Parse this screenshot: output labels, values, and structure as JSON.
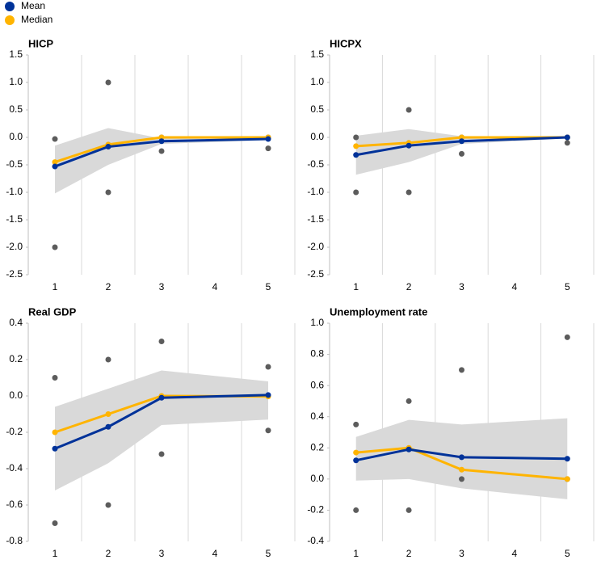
{
  "legend": {
    "entries": [
      {
        "name": "Mean",
        "color": "#003299"
      },
      {
        "name": "Median",
        "color": "#ffb400"
      }
    ]
  },
  "chart_data": [
    {
      "type": "line",
      "title": "HICP",
      "x": [
        1,
        2,
        3,
        5
      ],
      "xlim": [
        0.5,
        5.5
      ],
      "xticks": [
        1,
        2,
        3,
        4,
        5
      ],
      "ylim": [
        -2.5,
        1.5
      ],
      "yticks": [
        -2.5,
        {
          "value": -2,
          "label": "-2.0"
        },
        -1.5,
        {
          "value": -1,
          "label": "-1.0"
        },
        -0.5,
        {
          "value": 0,
          "label": "0.0"
        },
        0.5,
        {
          "value": 1,
          "label": "1.0"
        },
        1.5
      ],
      "series": [
        {
          "values": [
            -0.53,
            -0.17,
            -0.07,
            -0.03
          ]
        },
        {
          "values": [
            -0.45,
            -0.13,
            0,
            0
          ]
        }
      ],
      "band": {
        "color": "#d9d9d9",
        "lower": [
          -1.02,
          -0.5,
          -0.12,
          -0.05
        ],
        "upper": [
          -0.15,
          0.17,
          -0.02,
          0.01
        ]
      },
      "points": {
        "color": "#5c5c5c",
        "max": [
          -0.03,
          1,
          0,
          0
        ],
        "min": [
          -2,
          -1,
          -0.25,
          -0.2
        ]
      }
    },
    {
      "type": "line",
      "title": "HICPX",
      "x": [
        1,
        2,
        3,
        5
      ],
      "xlim": [
        0.5,
        5.5
      ],
      "xticks": [
        1,
        2,
        3,
        4,
        5
      ],
      "ylim": [
        -2.5,
        1.5
      ],
      "yticks": [
        -2.5,
        {
          "value": -2,
          "label": "-2.0"
        },
        -1.5,
        {
          "value": -1,
          "label": "-1.0"
        },
        -0.5,
        {
          "value": 0,
          "label": "0.0"
        },
        0.5,
        {
          "value": 1,
          "label": "1.0"
        },
        1.5
      ],
      "series": [
        {
          "values": [
            -0.32,
            -0.15,
            -0.07,
            0
          ]
        },
        {
          "values": [
            -0.16,
            -0.1,
            0,
            0
          ]
        }
      ],
      "band": {
        "color": "#d9d9d9",
        "lower": [
          -0.68,
          -0.45,
          -0.12,
          -0.02
        ],
        "upper": [
          0.03,
          0.15,
          0.02,
          0.02
        ]
      },
      "points": {
        "color": "#5c5c5c",
        "max": [
          0,
          0.5,
          0,
          0
        ],
        "min": [
          -1,
          -1,
          -0.3,
          -0.1
        ]
      }
    },
    {
      "type": "line",
      "title": "Real GDP",
      "x": [
        1,
        2,
        3,
        5
      ],
      "xlim": [
        0.5,
        5.5
      ],
      "xticks": [
        1,
        2,
        3,
        4,
        5
      ],
      "ylim": [
        -0.8,
        0.4
      ],
      "yticks": [
        -0.8,
        -0.6,
        -0.4,
        -0.2,
        {
          "value": 0,
          "label": "0.0"
        },
        0.2,
        0.4
      ],
      "series": [
        {
          "values": [
            -0.29,
            -0.17,
            -0.01,
            0.005
          ]
        },
        {
          "values": [
            -0.2,
            -0.1,
            0,
            -0.003
          ]
        }
      ],
      "band": {
        "color": "#d9d9d9",
        "lower": [
          -0.52,
          -0.37,
          -0.16,
          -0.13
        ],
        "upper": [
          -0.06,
          0.04,
          0.14,
          0.08
        ]
      },
      "points": {
        "color": "#5c5c5c",
        "max": [
          0.1,
          0.2,
          0.3,
          0.16
        ],
        "min": [
          -0.7,
          -0.6,
          -0.32,
          -0.19
        ]
      }
    },
    {
      "type": "line",
      "title": "Unemployment rate",
      "x": [
        1,
        2,
        3,
        5
      ],
      "xlim": [
        0.5,
        5.5
      ],
      "xticks": [
        1,
        2,
        3,
        4,
        5
      ],
      "ylim": [
        -0.4,
        1
      ],
      "yticks": [
        -0.4,
        -0.2,
        {
          "value": 0,
          "label": "0.0"
        },
        0.2,
        0.4,
        0.6,
        0.8,
        {
          "value": 1,
          "label": "1.0"
        }
      ],
      "series": [
        {
          "values": [
            0.12,
            0.19,
            0.14,
            0.13
          ]
        },
        {
          "values": [
            0.17,
            0.2,
            0.06,
            0
          ]
        }
      ],
      "band": {
        "color": "#d9d9d9",
        "lower": [
          -0.01,
          0,
          -0.06,
          -0.13
        ],
        "upper": [
          0.27,
          0.38,
          0.35,
          0.39
        ]
      },
      "points": {
        "color": "#5c5c5c",
        "max": [
          0.35,
          0.5,
          0.7,
          0.91
        ],
        "min": [
          -0.2,
          -0.2,
          0,
          0
        ]
      }
    }
  ]
}
